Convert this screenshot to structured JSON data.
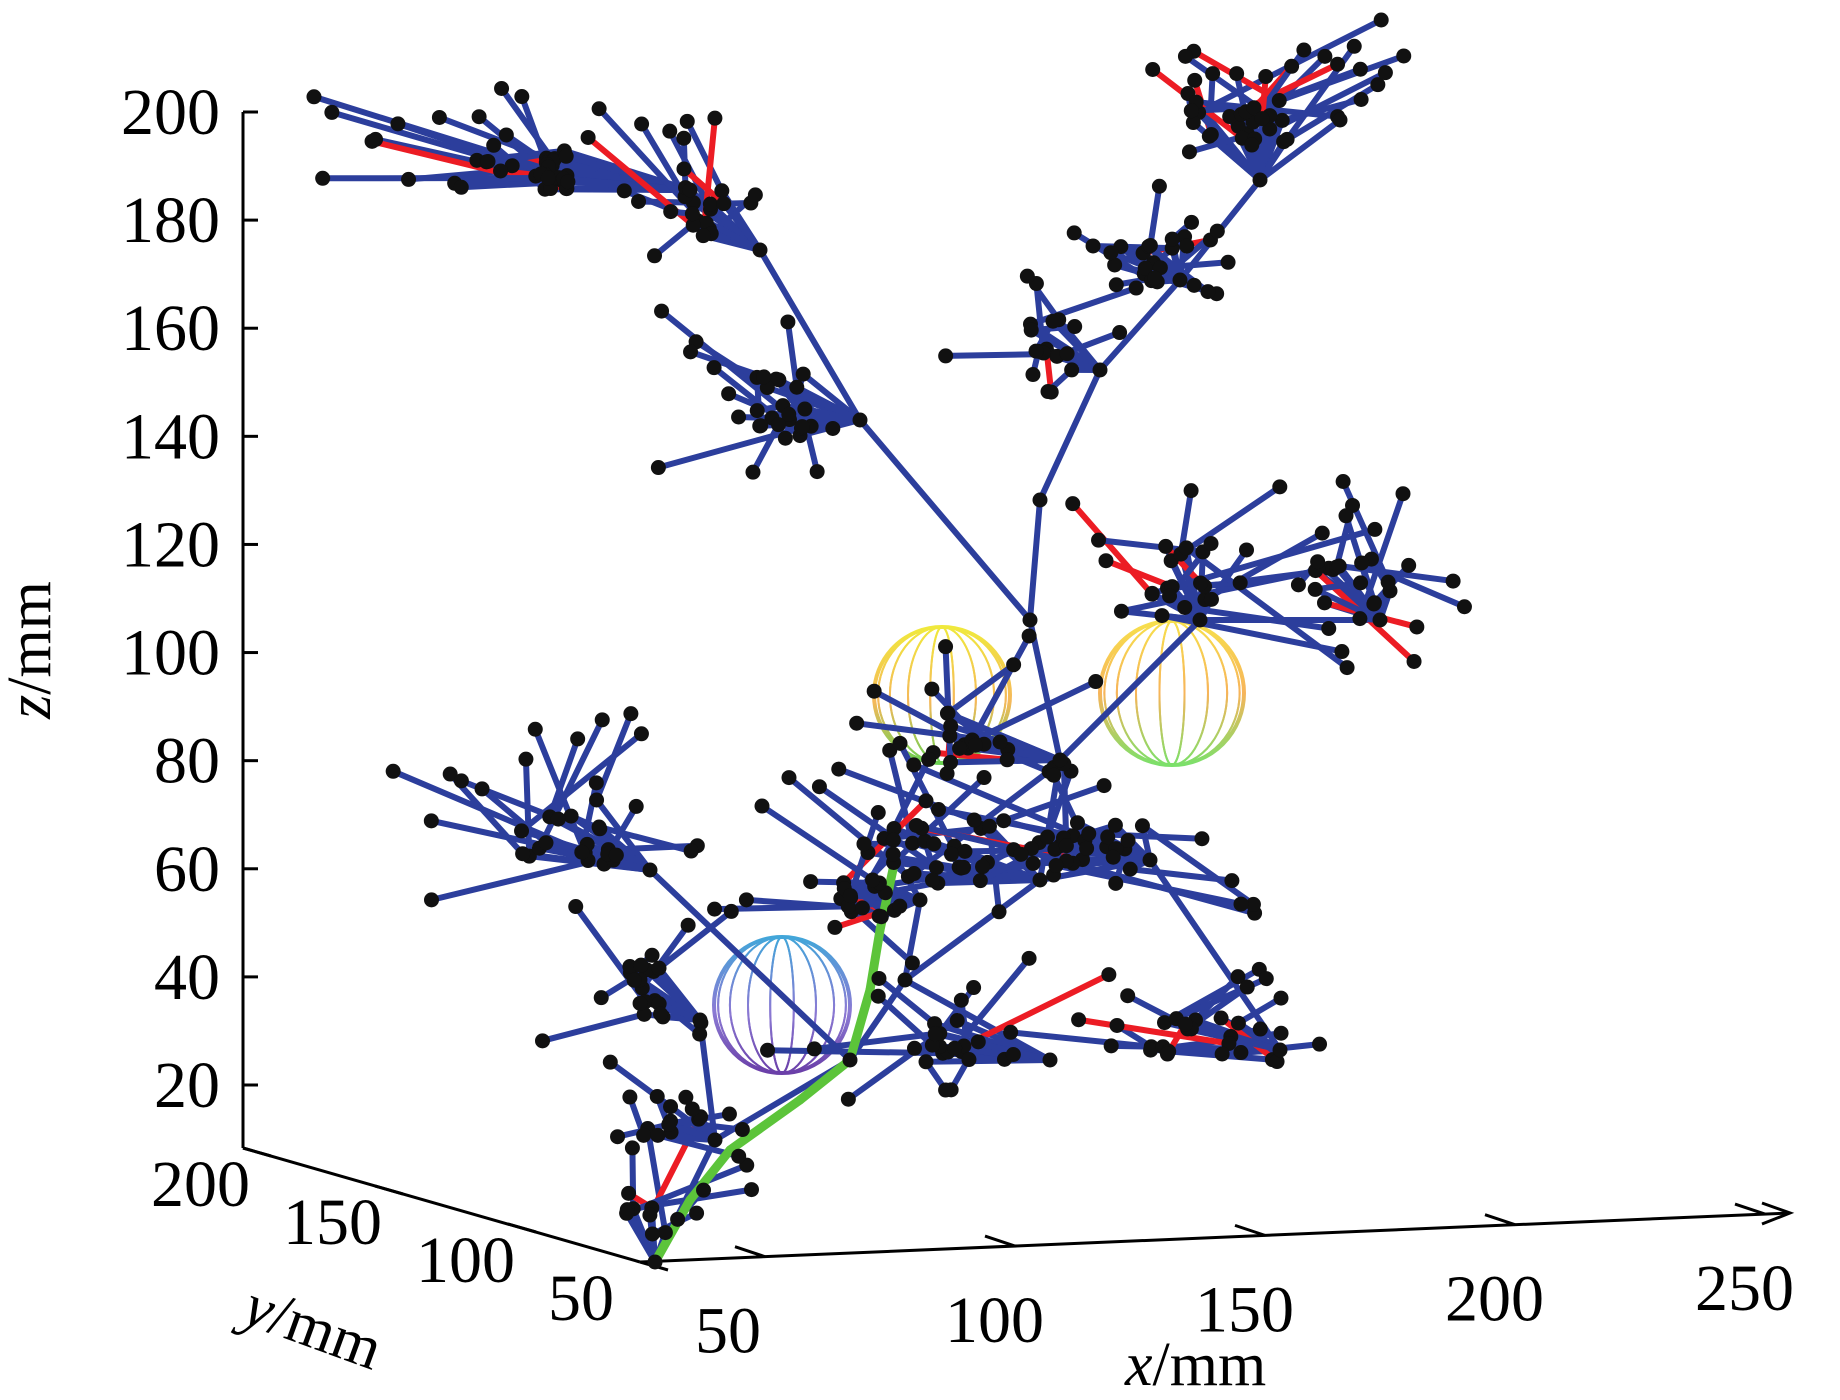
{
  "chart_data": {
    "type": "3d-rrt-tree",
    "title": "",
    "xlabel": {
      "var": "x",
      "unit": "/mm"
    },
    "ylabel": {
      "var": "y",
      "unit": "/mm"
    },
    "zlabel": {
      "var": "z",
      "unit": "/mm"
    },
    "xlim": [
      50,
      250
    ],
    "ylim": [
      50,
      200
    ],
    "zlim": [
      10,
      200
    ],
    "x_ticks": [
      50,
      100,
      150,
      200,
      250
    ],
    "y_ticks": [
      50,
      100,
      150,
      200
    ],
    "z_ticks": [
      20,
      40,
      60,
      80,
      100,
      120,
      140,
      160,
      180,
      200
    ],
    "grid": false,
    "colors": {
      "tree_edge": "#2c3e9c",
      "tree_node": "#111111",
      "highlight_edge": "#ec1c24",
      "path": "#5cc43a"
    },
    "obstacles": [
      {
        "name": "sphere-1",
        "color_top": "#f0e93c",
        "color_bottom": "#6ad152"
      },
      {
        "name": "sphere-2",
        "color_top": "#f7c64f",
        "color_bottom": "#7be06a"
      },
      {
        "name": "sphere-3",
        "color_top": "#42a6d9",
        "color_bottom": "#6a3fa8"
      }
    ]
  }
}
